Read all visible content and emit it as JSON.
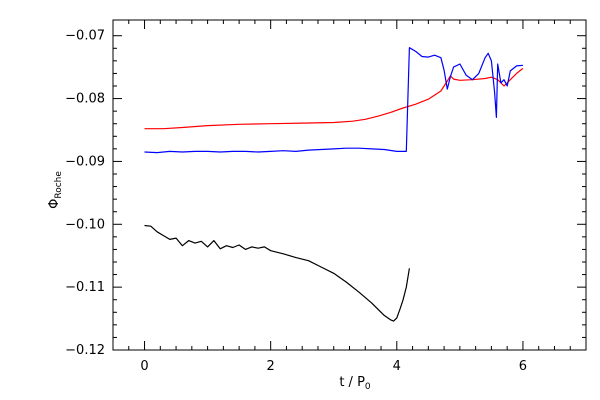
{
  "chart_data": {
    "type": "line",
    "title": "",
    "xlabel": "t / P",
    "xlabel_sub": "0",
    "ylabel": "Φ",
    "ylabel_sub": "Roche",
    "xlim": [
      -0.5,
      7
    ],
    "ylim": [
      -0.12,
      -0.0675
    ],
    "xticks": [
      0,
      2,
      4,
      6
    ],
    "xtick_labels": [
      "0",
      "2",
      "4",
      "6"
    ],
    "yticks": [
      -0.12,
      -0.11,
      -0.1,
      -0.09,
      -0.08,
      -0.07
    ],
    "ytick_labels": [
      "−0.12",
      "−0.11",
      "−0.10",
      "−0.09",
      "−0.08",
      "−0.07"
    ],
    "grid": false,
    "legend": "none",
    "series": [
      {
        "color": "#ff0000",
        "x": [
          0.0,
          0.3,
          0.6,
          1.0,
          1.5,
          2.0,
          2.5,
          3.0,
          3.3,
          3.5,
          3.7,
          3.9,
          4.1,
          4.3,
          4.5,
          4.7,
          4.8,
          4.85,
          4.9,
          5.0,
          5.2,
          5.4,
          5.5,
          5.6,
          5.7,
          5.8,
          5.9,
          6.0
        ],
        "y": [
          -0.0848,
          -0.0848,
          -0.0846,
          -0.0843,
          -0.0841,
          -0.084,
          -0.0839,
          -0.0838,
          -0.0836,
          -0.0833,
          -0.0828,
          -0.0822,
          -0.0815,
          -0.0809,
          -0.0801,
          -0.0788,
          -0.0772,
          -0.0764,
          -0.0769,
          -0.0771,
          -0.077,
          -0.0768,
          -0.0766,
          -0.077,
          -0.078,
          -0.077,
          -0.076,
          -0.0752
        ]
      },
      {
        "color": "#0000ff",
        "x": [
          0.0,
          0.2,
          0.4,
          0.6,
          0.8,
          1.0,
          1.2,
          1.4,
          1.6,
          1.8,
          2.0,
          2.2,
          2.4,
          2.6,
          2.8,
          3.0,
          3.2,
          3.4,
          3.6,
          3.8,
          4.0,
          4.15,
          4.2,
          4.3,
          4.4,
          4.5,
          4.6,
          4.7,
          4.75,
          4.8,
          4.85,
          4.9,
          5.0,
          5.1,
          5.2,
          5.3,
          5.4,
          5.45,
          5.5,
          5.55,
          5.58,
          5.6,
          5.65,
          5.7,
          5.75,
          5.8,
          5.9,
          6.0
        ],
        "y": [
          -0.0885,
          -0.0886,
          -0.0884,
          -0.0885,
          -0.0884,
          -0.0884,
          -0.0885,
          -0.0884,
          -0.0884,
          -0.0885,
          -0.0884,
          -0.0883,
          -0.0884,
          -0.0882,
          -0.0881,
          -0.088,
          -0.0879,
          -0.0879,
          -0.088,
          -0.0881,
          -0.0884,
          -0.0884,
          -0.0719,
          -0.0725,
          -0.0733,
          -0.0734,
          -0.0731,
          -0.0735,
          -0.0755,
          -0.0785,
          -0.0765,
          -0.075,
          -0.0745,
          -0.0763,
          -0.077,
          -0.076,
          -0.0735,
          -0.0728,
          -0.074,
          -0.079,
          -0.083,
          -0.0745,
          -0.0775,
          -0.077,
          -0.078,
          -0.0756,
          -0.0748,
          -0.0747
        ]
      },
      {
        "color": "#000000",
        "x": [
          0.0,
          0.1,
          0.2,
          0.3,
          0.4,
          0.5,
          0.6,
          0.7,
          0.8,
          0.9,
          1.0,
          1.1,
          1.2,
          1.3,
          1.4,
          1.5,
          1.6,
          1.7,
          1.8,
          1.9,
          2.0,
          2.2,
          2.4,
          2.6,
          2.8,
          3.0,
          3.2,
          3.4,
          3.6,
          3.8,
          3.9,
          3.95,
          4.0,
          4.05,
          4.1,
          4.15,
          4.2
        ],
        "y": [
          -0.1002,
          -0.1003,
          -0.1012,
          -0.1018,
          -0.1024,
          -0.1022,
          -0.1034,
          -0.1026,
          -0.103,
          -0.1027,
          -0.1036,
          -0.1026,
          -0.1039,
          -0.1034,
          -0.1037,
          -0.1033,
          -0.104,
          -0.1036,
          -0.1038,
          -0.1036,
          -0.1042,
          -0.1047,
          -0.1053,
          -0.1058,
          -0.1068,
          -0.1078,
          -0.1092,
          -0.1108,
          -0.1125,
          -0.1145,
          -0.1152,
          -0.1154,
          -0.1149,
          -0.1135,
          -0.112,
          -0.11,
          -0.107
        ]
      }
    ]
  }
}
